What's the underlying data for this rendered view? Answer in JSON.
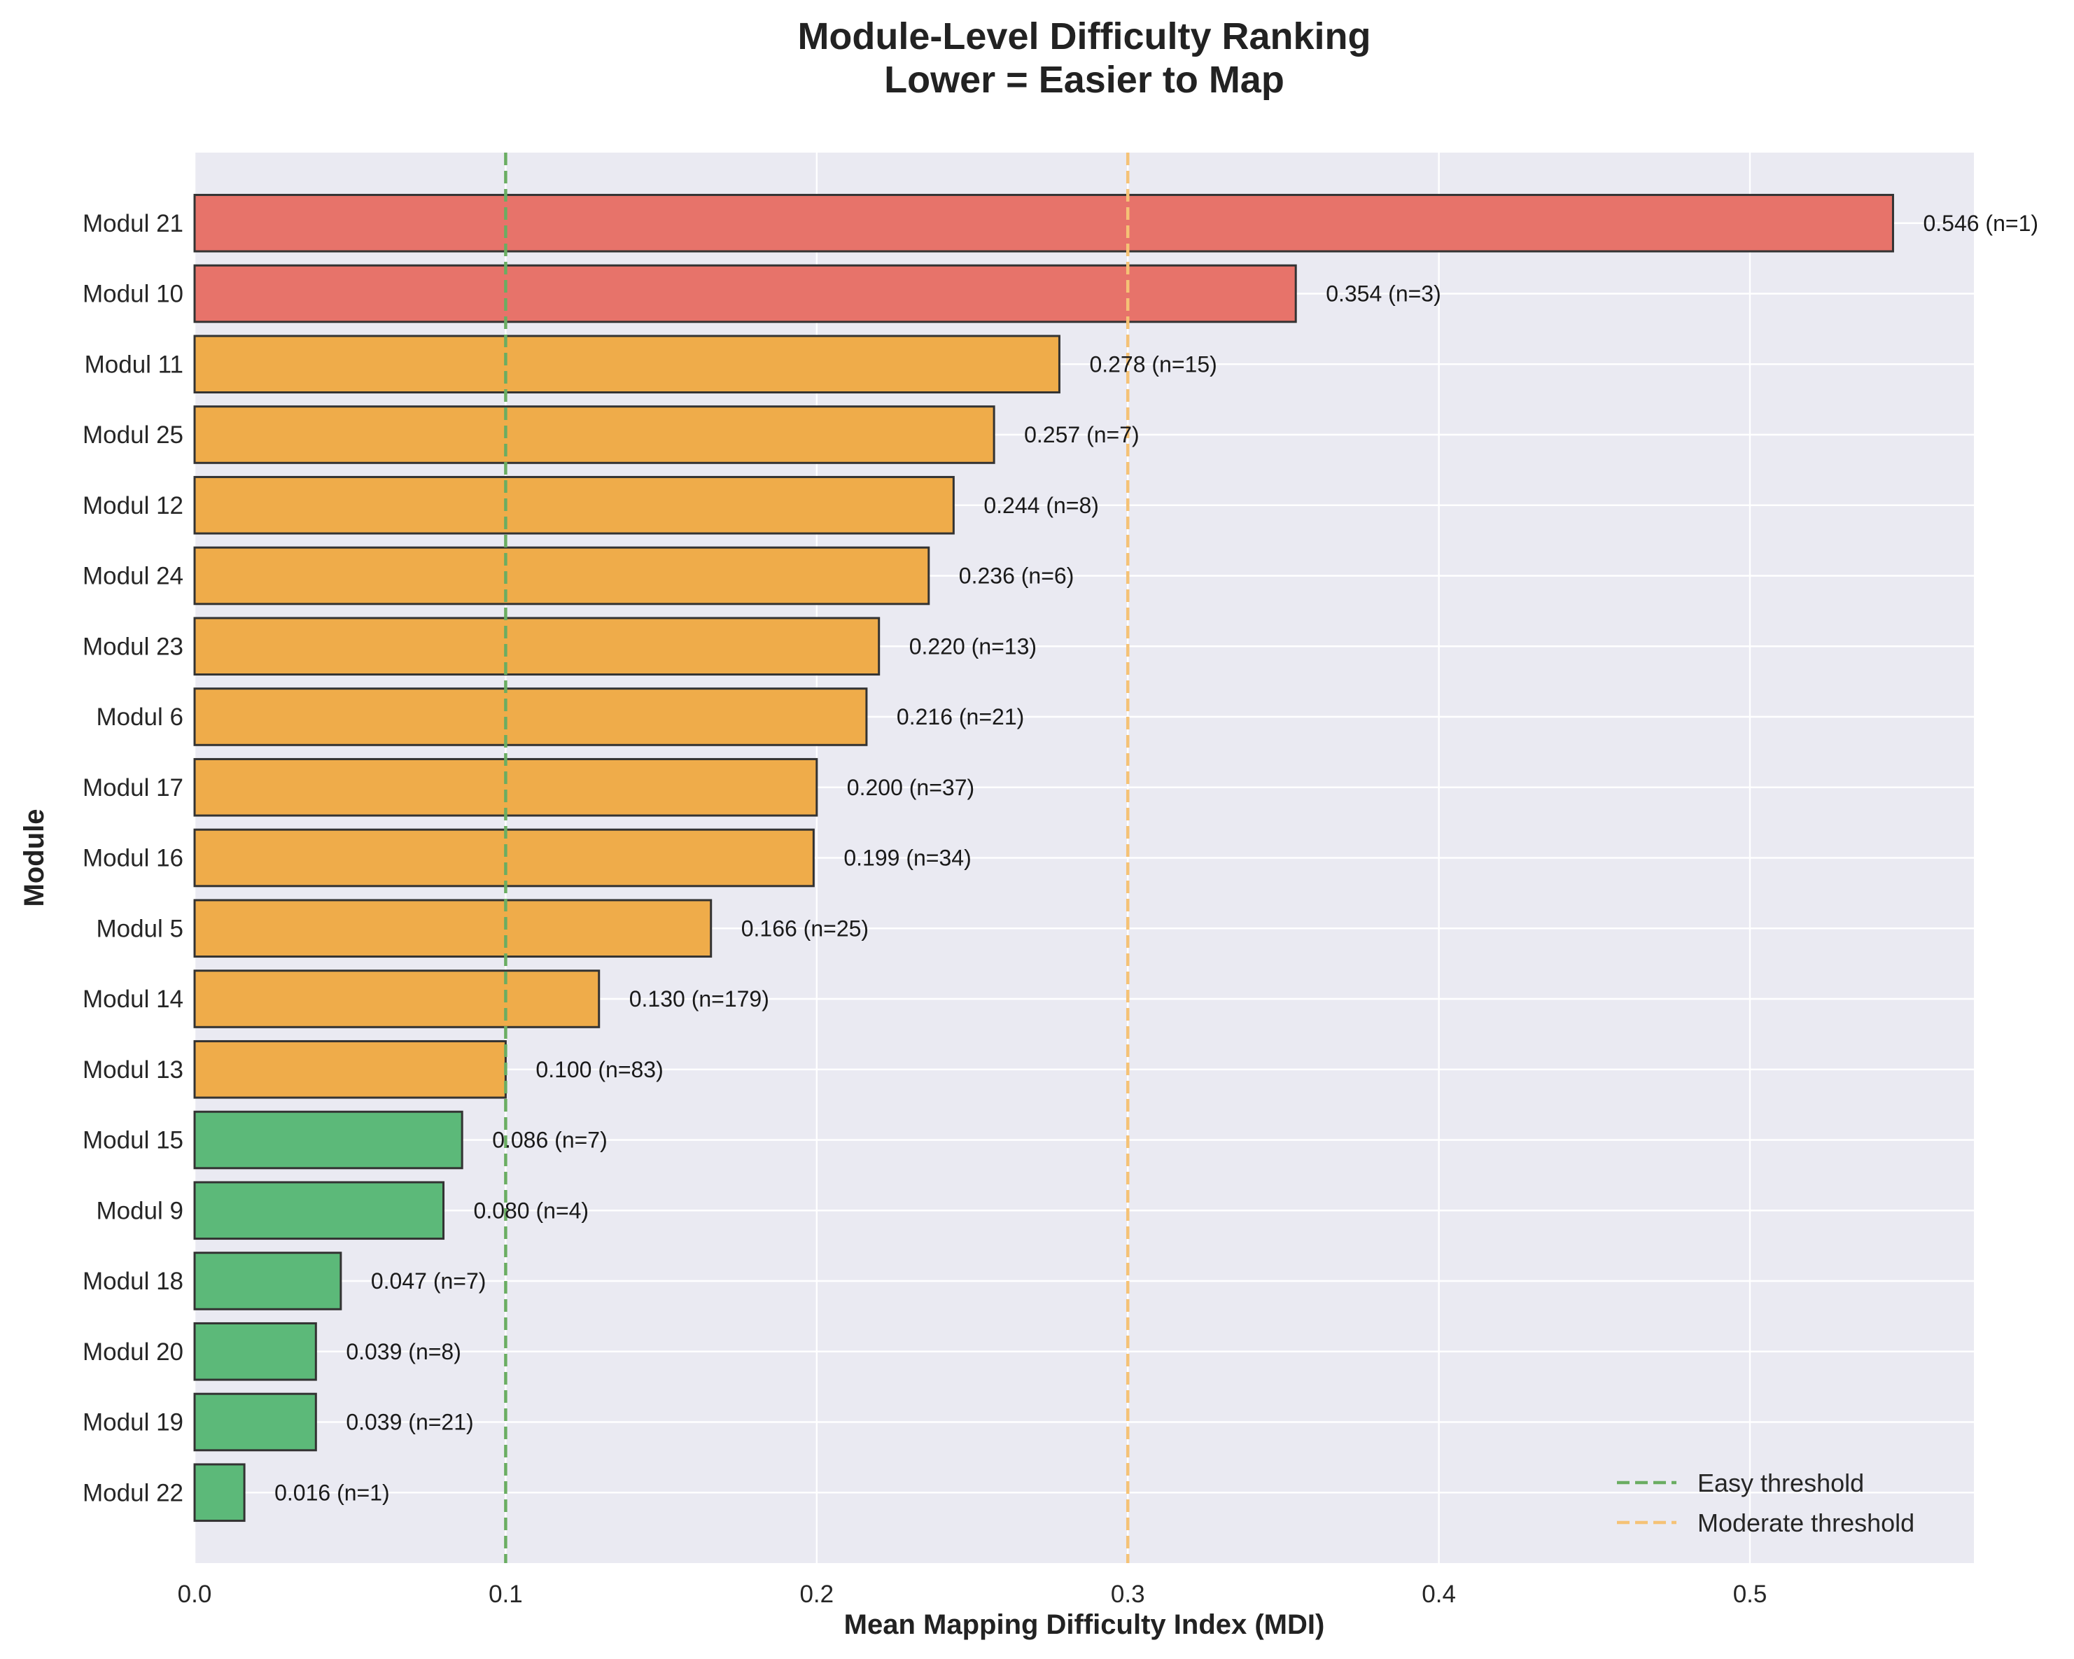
{
  "chart_data": {
    "type": "bar",
    "orientation": "horizontal",
    "title_lines": [
      "Module-Level Difficulty Ranking",
      "Lower = Easier to Map"
    ],
    "xlabel": "Mean Mapping Difficulty Index (MDI)",
    "ylabel": "Module",
    "xlim": [
      0,
      0.572
    ],
    "xticks": [
      0.0,
      0.1,
      0.2,
      0.3,
      0.4,
      0.5
    ],
    "xtick_labels": [
      "0.0",
      "0.1",
      "0.2",
      "0.3",
      "0.4",
      "0.5"
    ],
    "grid": true,
    "categories": [
      "Modul 21",
      "Modul 10",
      "Modul 11",
      "Modul 25",
      "Modul 12",
      "Modul 24",
      "Modul 23",
      "Modul 6",
      "Modul 17",
      "Modul 16",
      "Modul 5",
      "Modul 14",
      "Modul 13",
      "Modul 15",
      "Modul 9",
      "Modul 18",
      "Modul 20",
      "Modul 19",
      "Modul 22"
    ],
    "values": [
      0.546,
      0.354,
      0.278,
      0.257,
      0.244,
      0.236,
      0.22,
      0.216,
      0.2,
      0.199,
      0.166,
      0.13,
      0.1,
      0.086,
      0.08,
      0.047,
      0.039,
      0.039,
      0.016
    ],
    "counts": [
      1,
      3,
      15,
      7,
      8,
      6,
      13,
      21,
      37,
      34,
      25,
      179,
      83,
      7,
      4,
      7,
      8,
      21,
      1
    ],
    "data_labels": [
      "0.546 (n=1)",
      "0.354 (n=3)",
      "0.278 (n=15)",
      "0.257 (n=7)",
      "0.244 (n=8)",
      "0.236 (n=6)",
      "0.220 (n=13)",
      "0.216 (n=21)",
      "0.200 (n=37)",
      "0.199 (n=34)",
      "0.166 (n=25)",
      "0.130 (n=179)",
      "0.100 (n=83)",
      "0.086 (n=7)",
      "0.080 (n=4)",
      "0.047 (n=7)",
      "0.039 (n=8)",
      "0.039 (n=21)",
      "0.016 (n=1)"
    ],
    "bar_colors": {
      "easy": "#5cb979",
      "moderate": "#efac4a",
      "hard": "#e7736a",
      "edge": "#333333"
    },
    "thresholds": [
      {
        "name": "Easy threshold",
        "value": 0.1,
        "color": "#6aad62"
      },
      {
        "name": "Moderate threshold",
        "value": 0.3,
        "color": "#f5c276"
      }
    ],
    "legend_position": "lower-right",
    "background": "#eaeaf2"
  }
}
